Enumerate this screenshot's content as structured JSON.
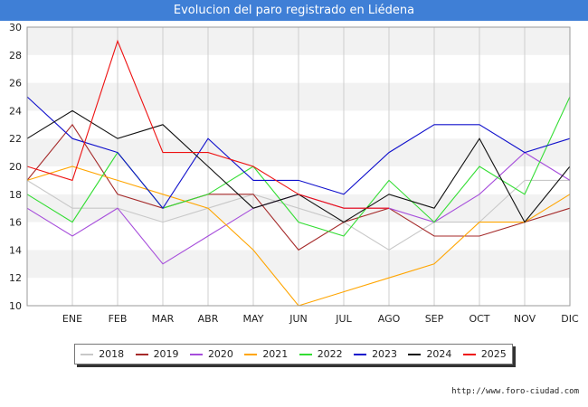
{
  "chart_data": {
    "type": "line",
    "title": "Evolucion del paro registrado en Liédena",
    "xlabel": "",
    "ylabel": "",
    "categories": [
      "",
      "ENE",
      "FEB",
      "MAR",
      "ABR",
      "MAY",
      "JUN",
      "JUL",
      "AGO",
      "SEP",
      "OCT",
      "NOV",
      "DIC"
    ],
    "ylim": [
      10,
      30
    ],
    "yticks": [
      10,
      12,
      14,
      16,
      18,
      20,
      22,
      24,
      26,
      28,
      30
    ],
    "grid": true,
    "legend_position": "bottom",
    "series": [
      {
        "name": "2018",
        "color": "#c8c8c8",
        "values": [
          19,
          17,
          17,
          16,
          17,
          18,
          17,
          16,
          14,
          16,
          16,
          19,
          19
        ]
      },
      {
        "name": "2019",
        "color": "#a52a2a",
        "values": [
          19,
          23,
          18,
          17,
          18,
          18,
          14,
          16,
          17,
          15,
          15,
          16,
          17
        ]
      },
      {
        "name": "2020",
        "color": "#a64ddb",
        "values": [
          17,
          15,
          17,
          13,
          15,
          17,
          18,
          17,
          17,
          16,
          18,
          21,
          19
        ]
      },
      {
        "name": "2021",
        "color": "#ffa500",
        "values": [
          19,
          20,
          19,
          18,
          17,
          14,
          10,
          11,
          12,
          13,
          16,
          16,
          18
        ]
      },
      {
        "name": "2022",
        "color": "#33dd33",
        "values": [
          18,
          16,
          21,
          17,
          18,
          20,
          16,
          15,
          19,
          16,
          20,
          18,
          25
        ]
      },
      {
        "name": "2023",
        "color": "#1010cc",
        "values": [
          25,
          22,
          21,
          17,
          22,
          19,
          19,
          18,
          21,
          23,
          23,
          21,
          22
        ]
      },
      {
        "name": "2024",
        "color": "#111111",
        "values": [
          22,
          24,
          22,
          23,
          20,
          17,
          18,
          16,
          18,
          17,
          22,
          16,
          20
        ]
      },
      {
        "name": "2025",
        "color": "#ee1111",
        "values": [
          20,
          19,
          29,
          21,
          21,
          20,
          18,
          17,
          17,
          null,
          null,
          null,
          null
        ]
      }
    ]
  },
  "source_text": "http://www.foro-ciudad.com"
}
